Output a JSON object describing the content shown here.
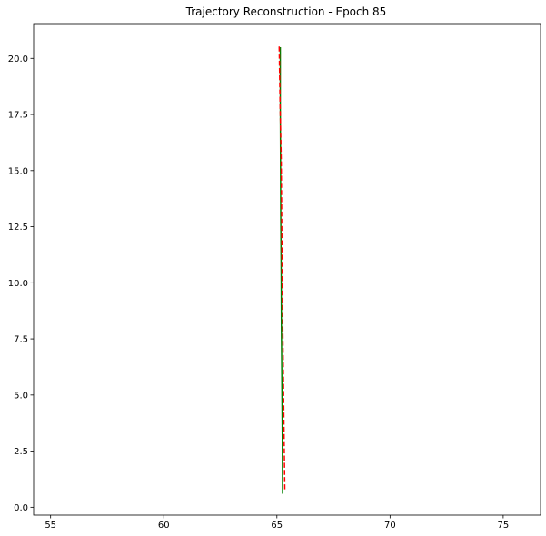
{
  "chart_data": {
    "type": "line",
    "title": "Trajectory Reconstruction - Epoch 85",
    "xlabel": "",
    "ylabel": "",
    "xlim": [
      54.25,
      76.65
    ],
    "ylim": [
      -0.35,
      21.55
    ],
    "x_ticks": [
      55,
      60,
      65,
      70,
      75
    ],
    "y_ticks": [
      0.0,
      2.5,
      5.0,
      7.5,
      10.0,
      12.5,
      15.0,
      17.5,
      20.0
    ],
    "x_tick_labels": [
      "55",
      "60",
      "65",
      "70",
      "75"
    ],
    "y_tick_labels": [
      "0.0",
      "2.5",
      "5.0",
      "7.5",
      "10.0",
      "12.5",
      "15.0",
      "17.5",
      "20.0"
    ],
    "grid": false,
    "legend": "none",
    "series": [
      {
        "color": "#008000",
        "style": "solid",
        "x": [
          65.25,
          65.24,
          65.22,
          65.2,
          65.19,
          65.17,
          65.16,
          65.15,
          65.15
        ],
        "y": [
          0.6,
          3.0,
          5.5,
          8.0,
          10.5,
          13.0,
          15.5,
          18.0,
          20.5
        ]
      },
      {
        "color": "#ff0000",
        "style": "dashed",
        "x": [
          65.35,
          65.32,
          65.29,
          65.26,
          65.23,
          65.21,
          65.19,
          65.14,
          65.1
        ],
        "y": [
          0.8,
          3.0,
          5.5,
          8.0,
          10.5,
          13.0,
          15.5,
          18.0,
          20.6
        ]
      }
    ]
  }
}
